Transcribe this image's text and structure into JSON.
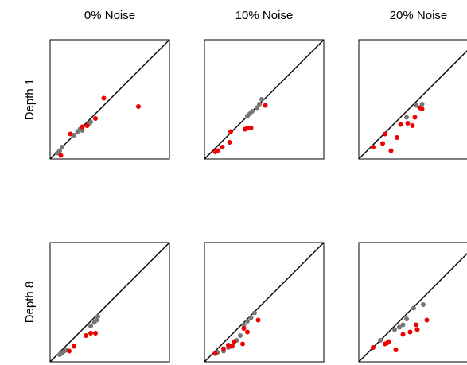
{
  "chart_data": {
    "type": "scatter",
    "layout": {
      "rows": 2,
      "cols": 3
    },
    "col_titles": [
      "0% Noise",
      "10% Noise",
      "20% Noise"
    ],
    "row_titles": [
      "Depth 1",
      "Depth 8"
    ],
    "xlim": [
      0,
      1
    ],
    "ylim": [
      0,
      1
    ],
    "diagonal": true,
    "colors": {
      "gray": "#777777",
      "red": "#ee0000",
      "line": "#000000"
    },
    "panels": [
      {
        "row": 0,
        "col": 0,
        "gray": [
          [
            0.06,
            0.05
          ],
          [
            0.08,
            0.07
          ],
          [
            0.1,
            0.1
          ],
          [
            0.2,
            0.2
          ],
          [
            0.23,
            0.23
          ],
          [
            0.25,
            0.25
          ],
          [
            0.27,
            0.24
          ],
          [
            0.32,
            0.29
          ],
          [
            0.34,
            0.31
          ]
        ],
        "red": [
          [
            0.09,
            0.03
          ],
          [
            0.17,
            0.21
          ],
          [
            0.27,
            0.27
          ],
          [
            0.31,
            0.28
          ],
          [
            0.38,
            0.34
          ],
          [
            0.45,
            0.51
          ],
          [
            0.74,
            0.44
          ]
        ]
      },
      {
        "row": 0,
        "col": 1,
        "gray": [
          [
            0.36,
            0.36
          ],
          [
            0.38,
            0.38
          ],
          [
            0.4,
            0.4
          ],
          [
            0.44,
            0.43
          ],
          [
            0.46,
            0.46
          ],
          [
            0.48,
            0.5
          ]
        ],
        "red": [
          [
            0.09,
            0.06
          ],
          [
            0.11,
            0.07
          ],
          [
            0.15,
            0.1
          ],
          [
            0.21,
            0.14
          ],
          [
            0.22,
            0.23
          ],
          [
            0.34,
            0.25
          ],
          [
            0.36,
            0.26
          ],
          [
            0.39,
            0.26
          ],
          [
            0.51,
            0.45
          ]
        ]
      },
      {
        "row": 0,
        "col": 2,
        "gray": [
          [
            0.4,
            0.35
          ],
          [
            0.48,
            0.45
          ],
          [
            0.53,
            0.46
          ]
        ],
        "red": [
          [
            0.12,
            0.1
          ],
          [
            0.2,
            0.13
          ],
          [
            0.22,
            0.21
          ],
          [
            0.27,
            0.07
          ],
          [
            0.32,
            0.18
          ],
          [
            0.35,
            0.29
          ],
          [
            0.41,
            0.3
          ],
          [
            0.45,
            0.28
          ],
          [
            0.47,
            0.35
          ],
          [
            0.51,
            0.43
          ],
          [
            0.53,
            0.42
          ]
        ]
      },
      {
        "row": 1,
        "col": 0,
        "gray": [
          [
            0.08,
            0.06
          ],
          [
            0.1,
            0.07
          ],
          [
            0.12,
            0.09
          ],
          [
            0.14,
            0.1
          ],
          [
            0.34,
            0.3
          ],
          [
            0.37,
            0.33
          ],
          [
            0.39,
            0.35
          ],
          [
            0.4,
            0.38
          ]
        ],
        "red": [
          [
            0.16,
            0.09
          ],
          [
            0.2,
            0.13
          ],
          [
            0.3,
            0.22
          ],
          [
            0.34,
            0.24
          ],
          [
            0.38,
            0.24
          ]
        ]
      },
      {
        "row": 1,
        "col": 1,
        "gray": [
          [
            0.11,
            0.08
          ],
          [
            0.16,
            0.09
          ],
          [
            0.2,
            0.12
          ],
          [
            0.22,
            0.13
          ],
          [
            0.24,
            0.14
          ],
          [
            0.27,
            0.18
          ],
          [
            0.3,
            0.22
          ],
          [
            0.33,
            0.31
          ],
          [
            0.36,
            0.34
          ],
          [
            0.39,
            0.37
          ],
          [
            0.42,
            0.41
          ]
        ],
        "red": [
          [
            0.09,
            0.07
          ],
          [
            0.16,
            0.11
          ],
          [
            0.2,
            0.14
          ],
          [
            0.23,
            0.13
          ],
          [
            0.25,
            0.17
          ],
          [
            0.32,
            0.15
          ],
          [
            0.33,
            0.28
          ],
          [
            0.36,
            0.25
          ],
          [
            0.45,
            0.35
          ]
        ]
      },
      {
        "row": 1,
        "col": 2,
        "gray": [
          [
            0.18,
            0.18
          ],
          [
            0.3,
            0.27
          ],
          [
            0.34,
            0.29
          ],
          [
            0.37,
            0.31
          ],
          [
            0.4,
            0.36
          ],
          [
            0.46,
            0.45
          ],
          [
            0.54,
            0.48
          ]
        ],
        "red": [
          [
            0.12,
            0.12
          ],
          [
            0.22,
            0.15
          ],
          [
            0.24,
            0.16
          ],
          [
            0.25,
            0.17
          ],
          [
            0.31,
            0.1
          ],
          [
            0.37,
            0.23
          ],
          [
            0.43,
            0.25
          ],
          [
            0.48,
            0.31
          ],
          [
            0.49,
            0.27
          ],
          [
            0.57,
            0.35
          ]
        ]
      }
    ]
  }
}
